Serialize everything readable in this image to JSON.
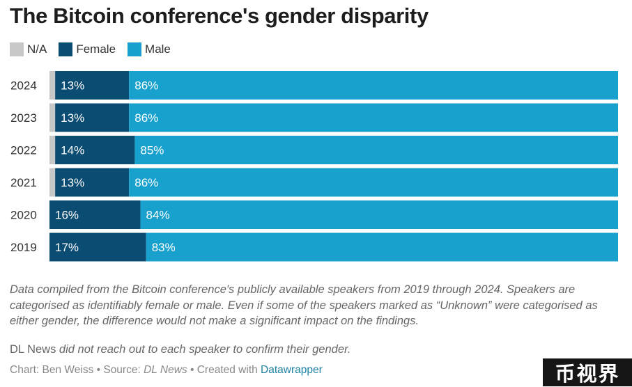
{
  "title": "The Bitcoin conference's gender disparity",
  "legend": [
    {
      "label": "N/A",
      "color": "#c8c8c8"
    },
    {
      "label": "Female",
      "color": "#0b4c73"
    },
    {
      "label": "Male",
      "color": "#18a1cd"
    }
  ],
  "chart_data": {
    "type": "bar",
    "orientation": "horizontal",
    "stacked": true,
    "percent_scale": true,
    "categories": [
      "2024",
      "2023",
      "2022",
      "2021",
      "2020",
      "2019"
    ],
    "series": [
      {
        "name": "N/A",
        "values": [
          1,
          1,
          1,
          1,
          0,
          0
        ],
        "labels": [
          "",
          "",
          "",
          "",
          "",
          ""
        ],
        "color": "#c8c8c8"
      },
      {
        "name": "Female",
        "values": [
          13,
          13,
          14,
          13,
          16,
          17
        ],
        "labels": [
          "13%",
          "13%",
          "14%",
          "13%",
          "16%",
          "17%"
        ],
        "color": "#0b4c73"
      },
      {
        "name": "Male",
        "values": [
          86,
          86,
          85,
          86,
          84,
          83
        ],
        "labels": [
          "86%",
          "86%",
          "85%",
          "86%",
          "84%",
          "83%"
        ],
        "color": "#18a1cd"
      }
    ],
    "xlim": [
      0,
      100
    ],
    "title": "The Bitcoin conference's gender disparity",
    "xlabel": "",
    "ylabel": ""
  },
  "notes": "Data compiled from the Bitcoin conference's publicly available speakers from 2019 through 2024. Speakers are categorised as identifiably female or male. Even if some of the speakers marked as “Unknown” were categorised as either gender, the difference would not make a significant impact on the findings.",
  "disclaimer": {
    "source_name": "DL News",
    "text": " did not reach out to each speaker to confirm their gender."
  },
  "byline": {
    "chart_prefix": "Chart: Ben Weiss • Source: ",
    "source": "DL News",
    "created": " • Created with ",
    "tool": "Datawrapper"
  },
  "watermark": "币视界"
}
